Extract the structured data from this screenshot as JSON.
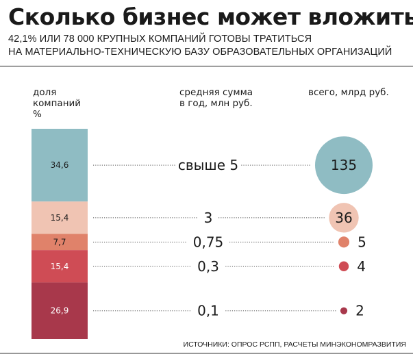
{
  "header": {
    "title": "Сколько бизнес может вложить",
    "subtitle_line1": "42,1% ИЛИ 78 000 КРУПНЫХ КОМПАНИЙ ГОТОВЫ ТРАТИТЬСЯ",
    "subtitle_line2": "НА МАТЕРИАЛЬНО-ТЕХНИЧЕСКУЮ БАЗУ ОБРАЗОВАТЕЛЬНЫХ ОРГАНИЗАЦИЙ"
  },
  "columns": {
    "share": [
      "доля",
      "компаний",
      "%"
    ],
    "avg": [
      "средняя сумма",
      "в год, млн руб."
    ],
    "total": [
      "всего, млрд руб."
    ]
  },
  "source": "ИСТОЧНИКИ: ОПРОС РСПП, РАСЧЕТЫ МИНЭКОНОМРАЗВИТИЯ",
  "chart_data": {
    "type": "table",
    "rows": [
      {
        "share": 34.6,
        "share_label": "34,6",
        "avg_amount": "свыше 5",
        "total": 135,
        "total_label": "135",
        "color": "#8fbcc3"
      },
      {
        "share": 15.4,
        "share_label": "15,4",
        "avg_amount": "3",
        "total": 36,
        "total_label": "36",
        "color": "#f0c4b3"
      },
      {
        "share": 7.7,
        "share_label": "7,7",
        "avg_amount": "0,75",
        "total": 5,
        "total_label": "5",
        "color": "#e0826a"
      },
      {
        "share": 15.4,
        "share_label": "15,4",
        "avg_amount": "0,3",
        "total": 4,
        "total_label": "4",
        "color": "#cf4c55"
      },
      {
        "share": 26.9,
        "share_label": "26,9",
        "avg_amount": "0,1",
        "total": 2,
        "total_label": "2",
        "color": "#a8384b"
      }
    ]
  }
}
